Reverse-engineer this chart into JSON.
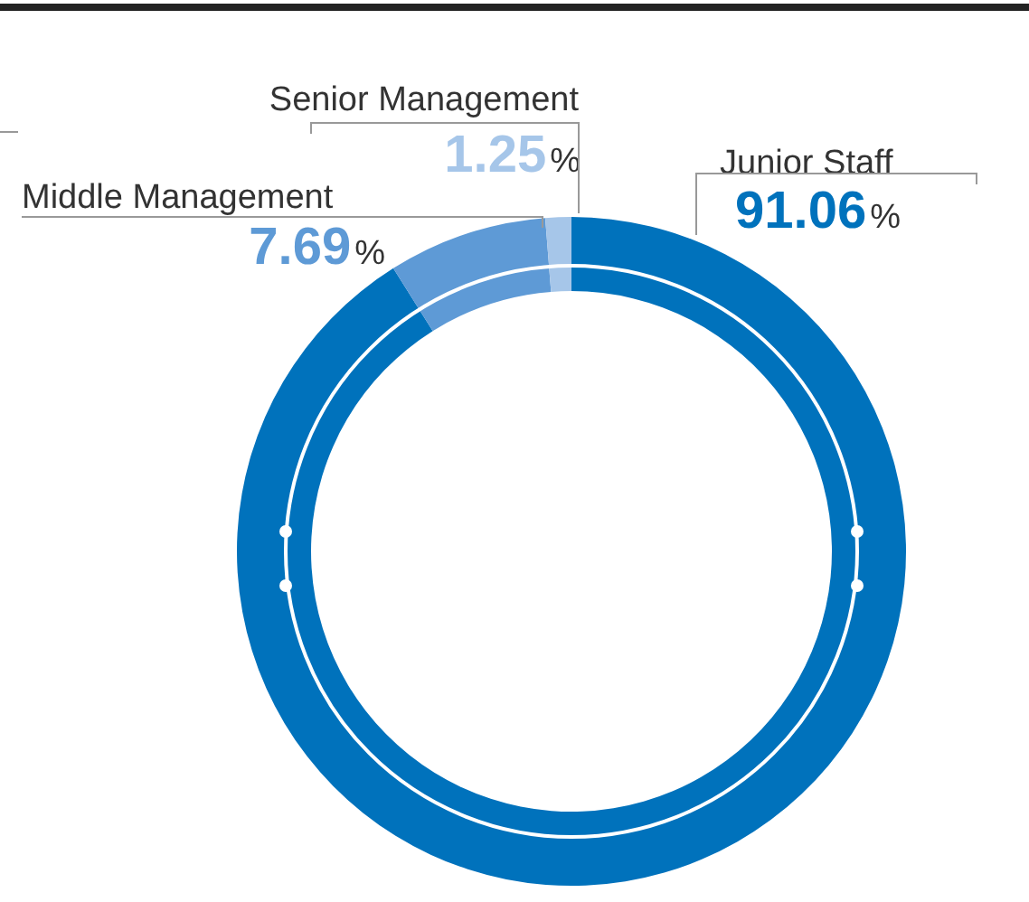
{
  "chart_data": {
    "type": "donut",
    "categories": [
      "Junior Staff",
      "Middle Management",
      "Senior Management"
    ],
    "values": [
      91.06,
      7.69,
      1.25
    ],
    "colors": [
      "#0072bc",
      "#5e9ad6",
      "#a6c6e9"
    ],
    "value_labels": [
      "91.06%",
      "7.69%",
      "1.25%"
    ]
  }
}
